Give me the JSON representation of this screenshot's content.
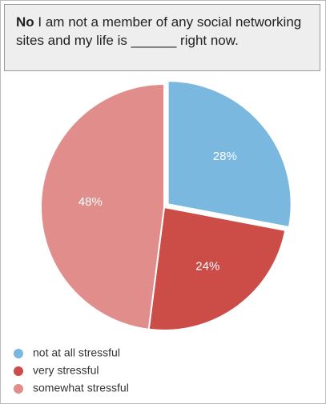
{
  "chart_data": {
    "type": "pie",
    "title_lead": "No",
    "title": "I am not a member of any social networking sites and my life is ______ right now.",
    "categories": [
      "not at all stressful",
      "very stressful",
      "somewhat stressful"
    ],
    "values": [
      28,
      24,
      48
    ],
    "value_labels": [
      "28%",
      "24%",
      "48%"
    ],
    "colors": [
      "#7ab8e0",
      "#cc4c48",
      "#e08d8c"
    ],
    "legend": "bottom-left"
  }
}
